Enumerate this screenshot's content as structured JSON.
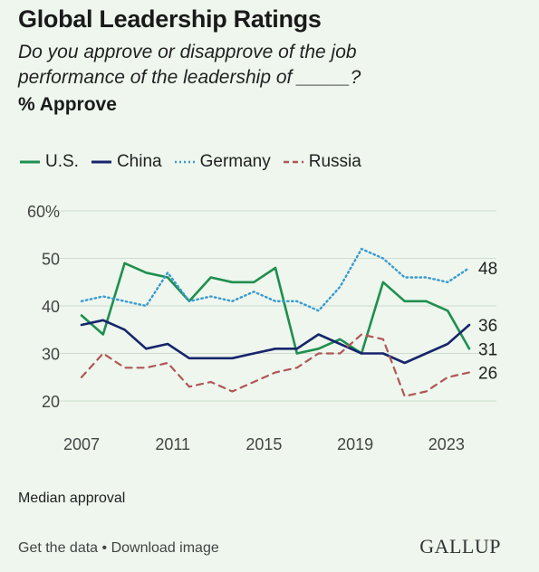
{
  "header": {
    "title": "Global Leadership Ratings",
    "subtitle": "Do you approve or disapprove of the job performance of the leadership of _____?",
    "measure": "% Approve"
  },
  "colors": {
    "us": "#1f8f4e",
    "china": "#16256b",
    "germany": "#3a9ad0",
    "russia": "#b05656"
  },
  "chart_data": {
    "type": "line",
    "ylim": [
      20,
      60
    ],
    "xlim": [
      2007,
      2024
    ],
    "yticks": [
      20,
      30,
      40,
      50,
      60
    ],
    "ytick_labels": [
      "20",
      "30",
      "40",
      "50",
      "60%"
    ],
    "xticks": [
      "2007",
      "2011",
      "2015",
      "2019",
      "2023"
    ],
    "legend_position": "top",
    "grid": true,
    "x": [
      2007,
      2008,
      2009,
      2010,
      2011,
      2012,
      2013,
      2014,
      2015,
      2016,
      2017,
      2018,
      2019,
      2020,
      2021,
      2022,
      2023,
      2024,
      2025
    ],
    "series": [
      {
        "name": "U.S.",
        "key": "us",
        "style": "solid",
        "end_label": "31",
        "values": [
          38,
          34,
          49,
          47,
          46,
          41,
          46,
          45,
          45,
          48,
          30,
          31,
          33,
          30,
          45,
          41,
          41,
          39,
          31
        ]
      },
      {
        "name": "China",
        "key": "china",
        "style": "solid",
        "end_label": "36",
        "values": [
          36,
          37,
          35,
          31,
          32,
          29,
          29,
          29,
          30,
          31,
          31,
          34,
          32,
          30,
          30,
          28,
          30,
          32,
          36
        ]
      },
      {
        "name": "Germany",
        "key": "germany",
        "style": "dotted",
        "end_label": "48",
        "values": [
          41,
          42,
          41,
          40,
          47,
          41,
          42,
          41,
          43,
          41,
          41,
          39,
          44,
          52,
          50,
          46,
          46,
          45,
          48
        ]
      },
      {
        "name": "Russia",
        "key": "russia",
        "style": "dashed",
        "end_label": "26",
        "values": [
          25,
          30,
          27,
          27,
          28,
          23,
          24,
          22,
          24,
          26,
          27,
          30,
          30,
          34,
          33,
          21,
          22,
          25,
          26
        ]
      }
    ]
  },
  "note": "Median approval",
  "footer": {
    "get_data": "Get the data",
    "separator": " • ",
    "download": "Download image",
    "logo": "GALLUP"
  }
}
